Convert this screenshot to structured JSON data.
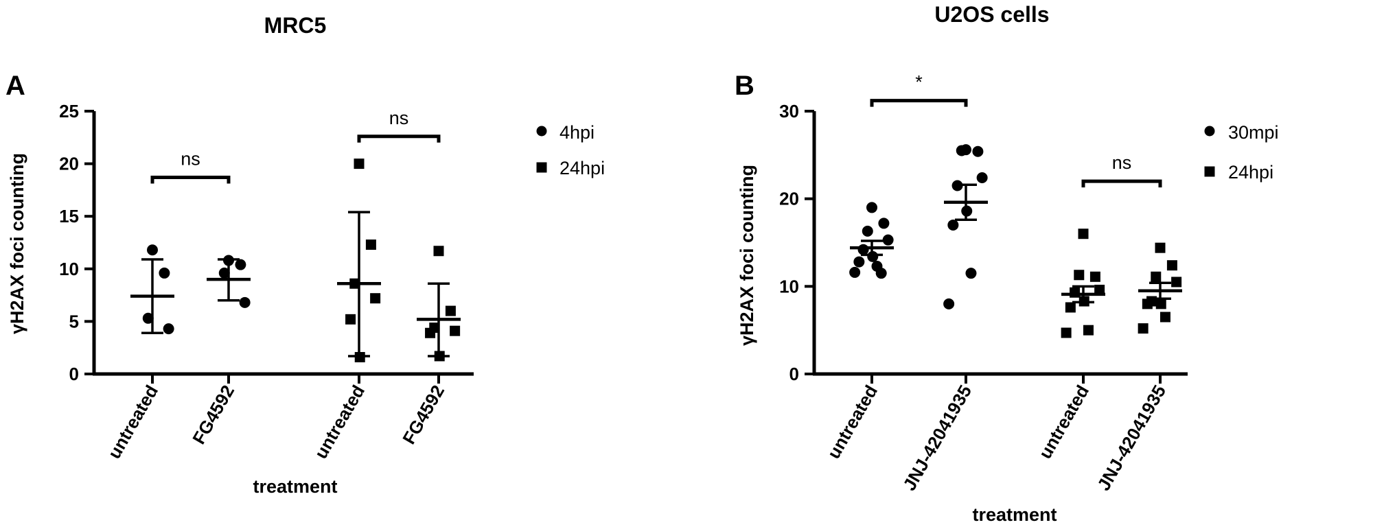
{
  "chart_data": [
    {
      "type": "scatter",
      "panel": "A",
      "title": "MRC5",
      "xlabel": "treatment",
      "ylabel": "γH2AX foci counting",
      "ylim": [
        0,
        25
      ],
      "yticks": [
        0,
        5,
        10,
        15,
        20,
        25
      ],
      "legend": [
        {
          "label": "4hpi",
          "marker": "circle"
        },
        {
          "label": "24hpi",
          "marker": "square"
        }
      ],
      "legend_position": "right",
      "groups": [
        {
          "category": "untreated",
          "marker": "circle",
          "points": [
            11.8,
            9.6,
            5.3,
            4.3
          ],
          "mean": 7.4,
          "err_low": 3.9,
          "err_high": 10.9
        },
        {
          "category": "FG4592",
          "marker": "circle",
          "points": [
            10.8,
            10.4,
            9.6,
            6.8
          ],
          "mean": 9.0,
          "err_low": 7.0,
          "err_high": 10.9
        },
        {
          "category": "untreated",
          "marker": "square",
          "points": [
            20.0,
            12.3,
            8.6,
            7.2,
            5.2,
            1.6
          ],
          "mean": 8.6,
          "err_low": 1.7,
          "err_high": 15.4
        },
        {
          "category": "FG4592",
          "marker": "square",
          "points": [
            11.7,
            6.0,
            4.4,
            4.1,
            3.9,
            1.7
          ],
          "mean": 5.2,
          "err_low": 1.7,
          "err_high": 8.6
        }
      ],
      "comparisons": [
        {
          "label": "ns",
          "groups": [
            0,
            1
          ],
          "y": 18.7
        },
        {
          "label": "ns",
          "groups": [
            2,
            3
          ],
          "y": 22.6
        }
      ]
    },
    {
      "type": "scatter",
      "panel": "B",
      "title": "U2OS cells",
      "xlabel": "treatment",
      "ylabel": "γH2AX foci counting",
      "ylim": [
        0,
        30
      ],
      "yticks": [
        0,
        10,
        20,
        30
      ],
      "legend": [
        {
          "label": "30mpi",
          "marker": "circle"
        },
        {
          "label": "24hpi",
          "marker": "square"
        }
      ],
      "legend_position": "right",
      "groups": [
        {
          "category": "untreated",
          "marker": "circle",
          "points": [
            19.0,
            17.2,
            16.3,
            15.3,
            14.2,
            13.4,
            12.8,
            12.3,
            11.6,
            11.5
          ],
          "mean": 14.4,
          "err_low": 13.6,
          "err_high": 15.2
        },
        {
          "category": "JNJ-42041935",
          "marker": "circle",
          "points": [
            25.6,
            25.4,
            25.5,
            22.4,
            21.5,
            18.6,
            17.0,
            11.5,
            8.0
          ],
          "mean": 19.6,
          "err_low": 17.6,
          "err_high": 21.6
        },
        {
          "category": "untreated",
          "marker": "square",
          "points": [
            16.0,
            11.1,
            11.3,
            9.6,
            9.3,
            8.3,
            7.6,
            5.0,
            4.7
          ],
          "mean": 9.1,
          "err_low": 8.2,
          "err_high": 10.0
        },
        {
          "category": "JNJ-42041935",
          "marker": "square",
          "points": [
            14.4,
            12.4,
            11.1,
            10.5,
            8.3,
            8.0,
            8.0,
            6.5,
            5.2
          ],
          "mean": 9.5,
          "err_low": 8.6,
          "err_high": 10.4
        }
      ],
      "comparisons": [
        {
          "label": "*",
          "groups": [
            0,
            1
          ],
          "y": 31.2
        },
        {
          "label": "ns",
          "groups": [
            2,
            3
          ],
          "y": 22.0
        }
      ]
    }
  ]
}
